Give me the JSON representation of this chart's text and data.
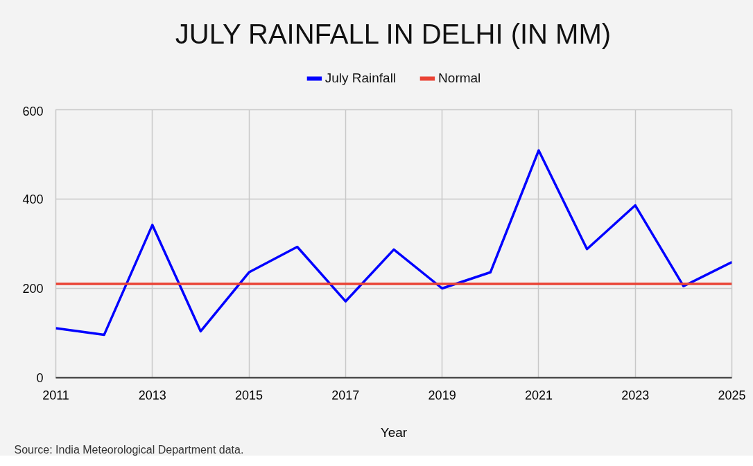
{
  "chart_data": {
    "type": "line",
    "title": "JULY RAINFALL IN DELHI (IN MM)",
    "xlabel": "Year",
    "annotations": [
      "Source: India Meteorological Department data."
    ],
    "x": [
      2011,
      2012,
      2013,
      2014,
      2015,
      2016,
      2017,
      2018,
      2019,
      2020,
      2021,
      2022,
      2023,
      2024,
      2025
    ],
    "series": [
      {
        "name": "July Rainfall",
        "color": "#0000ff",
        "values": [
          111,
          96,
          342,
          104,
          236,
          293,
          171,
          287,
          200,
          236,
          509,
          288,
          386,
          205,
          259
        ]
      },
      {
        "name": "Normal",
        "color": "#ea4335",
        "values": [
          210,
          210,
          210,
          210,
          210,
          210,
          210,
          210,
          210,
          210,
          210,
          210,
          210,
          210,
          210
        ]
      }
    ],
    "xlim": [
      2011,
      2025
    ],
    "xticks": [
      2011,
      2013,
      2015,
      2017,
      2019,
      2021,
      2023,
      2025
    ],
    "ylim": [
      0,
      600
    ],
    "yticks": [
      0,
      200,
      400,
      600
    ],
    "grid": true,
    "legend": "top",
    "line_style": "solid"
  }
}
